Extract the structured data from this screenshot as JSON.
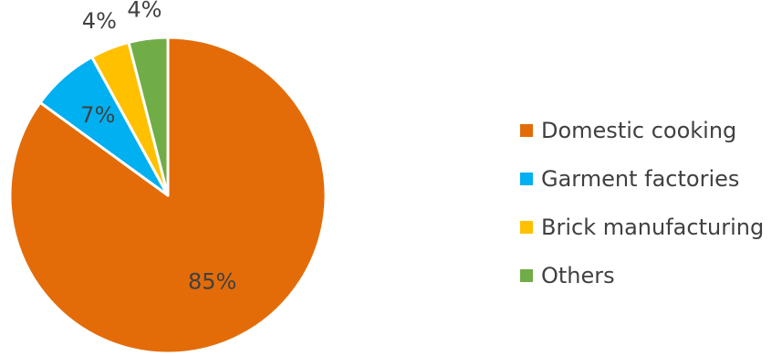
{
  "chart_data": {
    "type": "pie",
    "categories": [
      "Domestic cooking",
      "Garment factories",
      "Brick manufacturing",
      "Others"
    ],
    "values": [
      85,
      7,
      4,
      4
    ],
    "data_labels": [
      "85%",
      "7%",
      "4%",
      "4%"
    ],
    "colors": [
      "#E36C09",
      "#00B0F0",
      "#FFC000",
      "#70AD47"
    ],
    "legend_position": "right"
  }
}
